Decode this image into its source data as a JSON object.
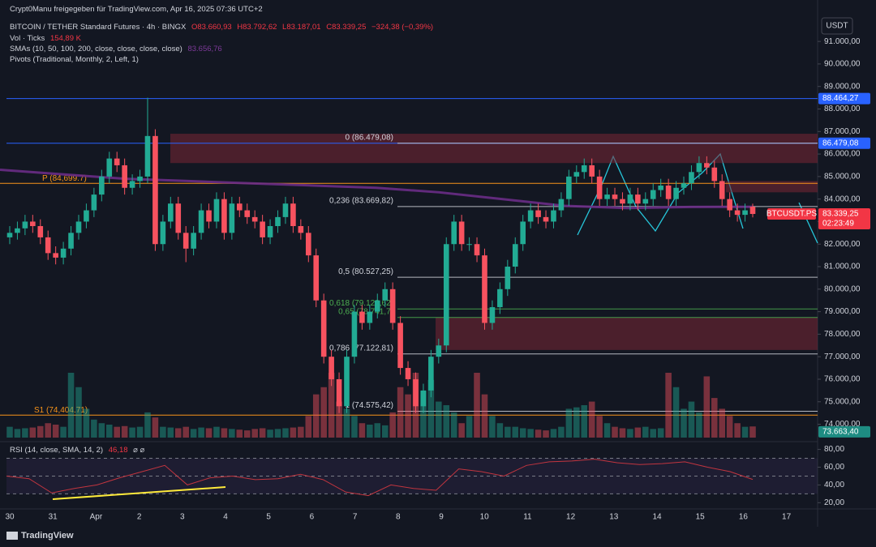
{
  "chart_data": {
    "type": "candlestick",
    "shared_by": "Crypt0Manu freigegeben für TradingView.com, Apr 16, 2025 07:36 UTC+2",
    "symbol": "BITCOIN / TETHER Standard Futures · 4h · BINGX",
    "ohlc_labels": [
      "O83.660,93",
      "H83.792,62",
      "L83.187,01",
      "C83.339,25",
      "−324,38 (−0,39%)"
    ],
    "vol_title": "Vol · Ticks",
    "vol_label": "154,89 K",
    "sma_title": "SMAs (10, 50, 100, 200, close, close, close, close)",
    "sma_label": "83.656,76",
    "pivots_title": "Pivots (Traditional, Monthly, 2, Left, 1)",
    "rsi_title": "RSI (14, close, SMA, 14, 2)",
    "rsi_label": "46,18",
    "rsi_extra": "⌀ ⌀",
    "currency": "USDT",
    "symbol_badge": "BTCUSDT.PS",
    "countdown": "02:23:49",
    "brand": "TradingView",
    "categories": [
      "30",
      "31",
      "Apr",
      "2",
      "3",
      "4",
      "5",
      "6",
      "7",
      "8",
      "9",
      "10",
      "11",
      "12",
      "13",
      "14",
      "15",
      "16",
      "17"
    ],
    "candles": [
      [
        82300,
        82800,
        82000,
        82500
      ],
      [
        82500,
        83000,
        82200,
        82700
      ],
      [
        82700,
        83300,
        82400,
        83000
      ],
      [
        83000,
        83300,
        82500,
        82800
      ],
      [
        82800,
        83100,
        82000,
        82300
      ],
      [
        82300,
        82600,
        81300,
        81600
      ],
      [
        81600,
        81900,
        81100,
        81400
      ],
      [
        81400,
        82100,
        81100,
        81800
      ],
      [
        81800,
        82800,
        81500,
        82500
      ],
      [
        82500,
        83300,
        82200,
        83000
      ],
      [
        83000,
        83800,
        82700,
        83500
      ],
      [
        83500,
        84500,
        83200,
        84200
      ],
      [
        84200,
        85300,
        83900,
        85000
      ],
      [
        85000,
        86100,
        84700,
        85800
      ],
      [
        85800,
        86100,
        85200,
        85500
      ],
      [
        85500,
        85800,
        84200,
        84500
      ],
      [
        84500,
        85100,
        84200,
        84800
      ],
      [
        84800,
        85300,
        84500,
        85000
      ],
      [
        85000,
        88500,
        84700,
        86800
      ],
      [
        86800,
        87100,
        81700,
        82000
      ],
      [
        82000,
        83300,
        81700,
        83000
      ],
      [
        83000,
        84100,
        82700,
        83800
      ],
      [
        83800,
        84100,
        82200,
        82500
      ],
      [
        82500,
        82800,
        81200,
        81800
      ],
      [
        81800,
        82800,
        81500,
        82500
      ],
      [
        82500,
        83800,
        82200,
        83500
      ],
      [
        83500,
        83800,
        82700,
        83000
      ],
      [
        83000,
        84300,
        82700,
        84000
      ],
      [
        84000,
        84300,
        82200,
        82500
      ],
      [
        82500,
        84100,
        82200,
        83800
      ],
      [
        83800,
        84100,
        83200,
        83500
      ],
      [
        83500,
        83800,
        82900,
        83200
      ],
      [
        83200,
        83500,
        82700,
        83000
      ],
      [
        83000,
        83300,
        82000,
        82300
      ],
      [
        82300,
        83100,
        82000,
        82800
      ],
      [
        82800,
        83500,
        82500,
        83200
      ],
      [
        83200,
        84100,
        82900,
        83800
      ],
      [
        83800,
        84100,
        82500,
        82800
      ],
      [
        82800,
        83100,
        82200,
        82500
      ],
      [
        82500,
        82800,
        81200,
        81500
      ],
      [
        81500,
        81800,
        79200,
        79500
      ],
      [
        79500,
        79800,
        76700,
        77000
      ],
      [
        77000,
        77300,
        75700,
        76000
      ],
      [
        76000,
        76300,
        74500,
        74800
      ],
      [
        74800,
        77300,
        74500,
        77000
      ],
      [
        77000,
        79300,
        76700,
        79000
      ],
      [
        79000,
        79300,
        78200,
        78500
      ],
      [
        78500,
        79300,
        78200,
        79000
      ],
      [
        79000,
        79800,
        78700,
        79500
      ],
      [
        79500,
        80300,
        79200,
        80000
      ],
      [
        80000,
        80300,
        78200,
        78500
      ],
      [
        78500,
        78800,
        76200,
        76500
      ],
      [
        76500,
        76800,
        75700,
        76000
      ],
      [
        76000,
        76300,
        74500,
        74800
      ],
      [
        74800,
        75800,
        74500,
        75500
      ],
      [
        75500,
        77300,
        75200,
        77000
      ],
      [
        77000,
        77800,
        76700,
        77500
      ],
      [
        77500,
        82300,
        77200,
        82000
      ],
      [
        82000,
        83300,
        81700,
        83000
      ],
      [
        83000,
        83300,
        81700,
        82000
      ],
      [
        82000,
        82300,
        81700,
        82000
      ],
      [
        82000,
        82300,
        81200,
        81500
      ],
      [
        81500,
        81800,
        78200,
        78500
      ],
      [
        78500,
        79500,
        78200,
        79200
      ],
      [
        79200,
        80300,
        78900,
        80000
      ],
      [
        80000,
        81300,
        79700,
        81000
      ],
      [
        81000,
        82300,
        80700,
        82000
      ],
      [
        82000,
        83300,
        81700,
        83000
      ],
      [
        83000,
        83800,
        82700,
        83500
      ],
      [
        83500,
        83800,
        82900,
        83200
      ],
      [
        83200,
        83500,
        82700,
        83000
      ],
      [
        83000,
        83800,
        82700,
        83500
      ],
      [
        83500,
        84300,
        83200,
        84000
      ],
      [
        84000,
        85300,
        83700,
        85000
      ],
      [
        85000,
        85500,
        84700,
        85200
      ],
      [
        85200,
        85800,
        84900,
        85500
      ],
      [
        85500,
        85800,
        84700,
        85000
      ],
      [
        85000,
        85300,
        83700,
        84000
      ],
      [
        84000,
        84500,
        83700,
        84200
      ],
      [
        84200,
        84500,
        83700,
        84000
      ],
      [
        84000,
        84300,
        83500,
        83800
      ],
      [
        83800,
        84500,
        83500,
        84200
      ],
      [
        84200,
        84500,
        83500,
        83800
      ],
      [
        83800,
        84300,
        83500,
        84000
      ],
      [
        84000,
        84700,
        83700,
        84400
      ],
      [
        84400,
        84900,
        84100,
        84600
      ],
      [
        84600,
        84900,
        83700,
        84000
      ],
      [
        84000,
        84800,
        83700,
        84500
      ],
      [
        84500,
        85000,
        84200,
        84700
      ],
      [
        84700,
        85500,
        84400,
        85200
      ],
      [
        85200,
        85900,
        84900,
        85600
      ],
      [
        85600,
        85900,
        85100,
        85400
      ],
      [
        85400,
        85700,
        84500,
        84800
      ],
      [
        84800,
        85100,
        83700,
        84000
      ],
      [
        84000,
        84300,
        83200,
        83500
      ],
      [
        83500,
        83800,
        83000,
        83300
      ],
      [
        83300,
        83800,
        83000,
        83500
      ],
      [
        83660.93,
        83792.62,
        83187.01,
        83339.25
      ]
    ],
    "volume": [
      150,
      120,
      130,
      140,
      160,
      200,
      180,
      150,
      900,
      700,
      400,
      250,
      200,
      180,
      150,
      160,
      140,
      150,
      350,
      280,
      150,
      140,
      130,
      150,
      120,
      140,
      130,
      150,
      130,
      120,
      110,
      100,
      120,
      130,
      110,
      120,
      130,
      140,
      150,
      300,
      600,
      700,
      900,
      500,
      400,
      300,
      200,
      180,
      200,
      170,
      350,
      700,
      600,
      900,
      650,
      800,
      500,
      450,
      350,
      200,
      300,
      900,
      600,
      300,
      200,
      150,
      150,
      130,
      120,
      110,
      100,
      120,
      150,
      400,
      420,
      450,
      500,
      300,
      200,
      150,
      130,
      120,
      140,
      150,
      120,
      130,
      900,
      700,
      400,
      500,
      350,
      850,
      550,
      400,
      300,
      200,
      150,
      154.89
    ],
    "sma": [
      85300,
      85100,
      84900,
      84800,
      84700,
      84600,
      84500,
      84300,
      84000,
      83700,
      83600,
      83650,
      83656.76
    ],
    "rsi": [
      50,
      47,
      31,
      36,
      40,
      48,
      55,
      62,
      40,
      48,
      50,
      46,
      47,
      52,
      46,
      32,
      28,
      40,
      36,
      34,
      58,
      55,
      50,
      62,
      66,
      67,
      69,
      65,
      63,
      64,
      66,
      60,
      55,
      46.18
    ],
    "colors": {
      "up": "#22ab94",
      "down": "#f7525f",
      "sma": "#6a2c86",
      "rsi": "#c2353f",
      "fib": "#d1d4dc",
      "fib_golden": "#4caf50",
      "pivot": "#f7931a",
      "level": "#2962ff",
      "zone": "#7a2634"
    },
    "ylim": [
      73300,
      92300
    ],
    "yticks": [
      {
        "value": 74000,
        "label": "74.000,00"
      },
      {
        "value": 75000,
        "label": "75.000,00"
      },
      {
        "value": 76000,
        "label": "76.000,00"
      },
      {
        "value": 77000,
        "label": "77.000,00"
      },
      {
        "value": 78000,
        "label": "78.000,00"
      },
      {
        "value": 79000,
        "label": "79.000,00"
      },
      {
        "value": 80000,
        "label": "80.000,00"
      },
      {
        "value": 81000,
        "label": "81.000,00"
      },
      {
        "value": 82000,
        "label": "82.000,00"
      },
      {
        "value": 83000,
        "label": "83.000,00"
      },
      {
        "value": 84000,
        "label": "84.000,00"
      },
      {
        "value": 85000,
        "label": "85.000,00"
      },
      {
        "value": 86000,
        "label": "86.000,00"
      },
      {
        "value": 87000,
        "label": "87.000,00"
      },
      {
        "value": 88000,
        "label": "88.000,00"
      },
      {
        "value": 89000,
        "label": "89.000,00"
      },
      {
        "value": 90000,
        "label": "90.000,00"
      },
      {
        "value": 91000,
        "label": "91.000,00"
      }
    ],
    "rsi_ylim": [
      13,
      86
    ],
    "rsi_yticks": [
      {
        "value": 20,
        "label": "20,00"
      },
      {
        "value": 40,
        "label": "40,00"
      },
      {
        "value": 60,
        "label": "60,00"
      },
      {
        "value": 80,
        "label": "80,00"
      }
    ],
    "rsi_bands": [
      70,
      50,
      30
    ],
    "fib_levels": [
      {
        "value": 86479.08,
        "label": "0 (86.479,08)"
      },
      {
        "value": 83669.82,
        "label": "0,236 (83.669,82)"
      },
      {
        "value": 80527.25,
        "label": "0,5 (80.527,25)"
      },
      {
        "value": 79122.62,
        "label": "0,618 (79.122,62)"
      },
      {
        "value": 78741.7,
        "label": "0,65 (78.741,7)"
      },
      {
        "value": 77122.81,
        "label": "0,786 (77.122,81)"
      },
      {
        "value": 74575.42,
        "label": "1 (74.575,42)"
      }
    ],
    "pivots": [
      {
        "value": 84699.7,
        "label": "P (84,699.7)"
      },
      {
        "value": 74404.71,
        "label": "S1 (74,404.71)"
      }
    ],
    "levels": [
      88464.27,
      86479.08
    ],
    "zones": [
      [
        86900,
        85600
      ],
      [
        78750,
        77300
      ],
      [
        84800,
        84300
      ]
    ],
    "price_badges": [
      {
        "value": 88464.27,
        "label": "88.464,27",
        "color": "#2962ff"
      },
      {
        "value": 86479.08,
        "label": "86.479,08",
        "color": "#2962ff"
      },
      {
        "value": 83339.25,
        "label": "83.339,25",
        "color": "#f23645"
      },
      {
        "value": 73663.4,
        "label": "73.663,40",
        "color": "#1e8c82"
      }
    ]
  }
}
